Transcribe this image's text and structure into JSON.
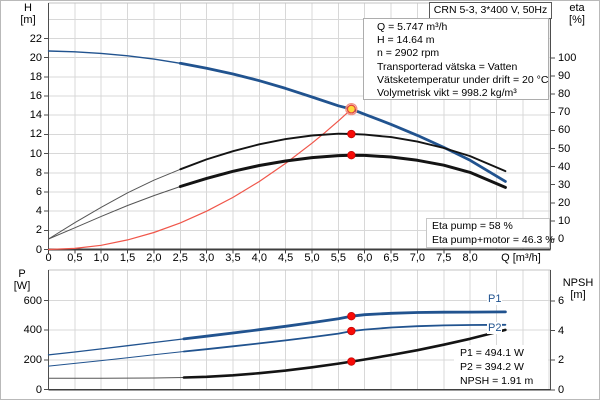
{
  "title_box": "CRN 5-3, 3*400 V, 50Hz",
  "info_lines": [
    "Q = 5.747 m³/h",
    "H = 14.64 m",
    "n = 2902 rpm",
    "Transporterad vätska = Vatten",
    "Vätsketemperatur under drift = 20 °C",
    "Volymetrisk vikt = 998.2 kg/m³"
  ],
  "colors": {
    "curve_blue": "#21538f",
    "curve_red": "#f0564a",
    "curve_black": "#141414",
    "curve_thin_gray": "#555555",
    "marker_red": "#f80b07",
    "marker_yellow": "#ffd93b",
    "marker_ring": "#f29084",
    "grid": "#d8d8d8",
    "frame_light": "#c3c3c3",
    "axis_dark": "#4d4d4d",
    "axis_main": "#3f3f3f"
  },
  "chart_data": [
    {
      "type": "line",
      "name": "qh-eta-chart",
      "title": "CRN 5-3, 3*400 V, 50Hz",
      "x_axis": {
        "label": "Q [m³/h]",
        "min": 0,
        "max": 9.5,
        "grid_step": 0.5,
        "tick_values": [
          0,
          0.5,
          1,
          1.5,
          2,
          2.5,
          3,
          3.5,
          4,
          4.5,
          5,
          5.5,
          6,
          6.5,
          7,
          7.5,
          8
        ],
        "tick_labels": [
          "0",
          "0,5",
          "1,0",
          "1,5",
          "2,0",
          "2,5",
          "3,0",
          "3,5",
          "4,0",
          "4,5",
          "5,0",
          "5,5",
          "6,0",
          "6,5",
          "7,0",
          "7,5",
          "8,0"
        ]
      },
      "y_left_axis": {
        "label": "H",
        "unit": "[m]",
        "min": 0,
        "max": 22,
        "ticks": [
          0,
          2,
          4,
          6,
          8,
          10,
          12,
          14,
          16,
          18,
          20,
          22
        ]
      },
      "y_right_axis": {
        "label": "eta",
        "unit": "[%]",
        "min": 0,
        "max": 100,
        "ticks": [
          0,
          10,
          20,
          30,
          40,
          50,
          60,
          70,
          80,
          90,
          100
        ]
      },
      "series": [
        {
          "name": "pump-curve",
          "color": "#21538f",
          "axis": "left",
          "thin_width": 1.4,
          "thick_width": 2.8,
          "thick_from": 2.5,
          "points": [
            [
              0,
              20.7
            ],
            [
              0.5,
              20.62
            ],
            [
              1,
              20.45
            ],
            [
              1.5,
              20.2
            ],
            [
              2,
              19.85
            ],
            [
              2.5,
              19.42
            ],
            [
              3,
              18.9
            ],
            [
              3.5,
              18.3
            ],
            [
              4,
              17.6
            ],
            [
              4.5,
              16.8
            ],
            [
              5,
              15.9
            ],
            [
              5.5,
              14.98
            ],
            [
              5.747,
              14.64
            ],
            [
              6,
              14.1
            ],
            [
              6.5,
              13.05
            ],
            [
              7,
              11.9
            ],
            [
              7.5,
              10.65
            ],
            [
              8,
              9.3
            ],
            [
              8.67,
              7.1
            ]
          ]
        },
        {
          "name": "system-curve",
          "color": "#f0564a",
          "axis": "left",
          "thin_width": 1.2,
          "points": [
            [
              0,
              0
            ],
            [
              0.5,
              0.11
            ],
            [
              1,
              0.44
            ],
            [
              1.5,
              1.0
            ],
            [
              2,
              1.77
            ],
            [
              2.5,
              2.77
            ],
            [
              3,
              3.99
            ],
            [
              3.5,
              5.43
            ],
            [
              4,
              7.09
            ],
            [
              4.5,
              8.98
            ],
            [
              5,
              11.08
            ],
            [
              5.25,
              12.22
            ],
            [
              5.5,
              13.41
            ],
            [
              5.747,
              14.64
            ]
          ]
        },
        {
          "name": "eta-pump-curve",
          "color": "#141414",
          "thin_color": "#555555",
          "axis": "right",
          "thin_width": 1,
          "thick_width": 1.9,
          "thick_from": 2.5,
          "points": [
            [
              0,
              0
            ],
            [
              0.5,
              9
            ],
            [
              1,
              17.5
            ],
            [
              1.5,
              25.5
            ],
            [
              2,
              32.5
            ],
            [
              2.5,
              38.5
            ],
            [
              3,
              44
            ],
            [
              3.5,
              48.5
            ],
            [
              4,
              52.3
            ],
            [
              4.5,
              55.2
            ],
            [
              5,
              57.2
            ],
            [
              5.5,
              58.2
            ],
            [
              5.747,
              58
            ],
            [
              6,
              57.7
            ],
            [
              6.5,
              56.3
            ],
            [
              7,
              53.8
            ],
            [
              7.5,
              50.3
            ],
            [
              8,
              45.8
            ],
            [
              8.67,
              37.5
            ]
          ]
        },
        {
          "name": "eta-pump-motor-curve",
          "color": "#141414",
          "thin_color": "#555555",
          "axis": "right",
          "thin_width": 1,
          "thick_width": 3,
          "thick_from": 2.5,
          "points": [
            [
              0,
              0
            ],
            [
              0.5,
              6.2
            ],
            [
              1,
              12.5
            ],
            [
              1.5,
              18.5
            ],
            [
              2,
              24
            ],
            [
              2.5,
              29
            ],
            [
              3,
              33.5
            ],
            [
              3.5,
              37.4
            ],
            [
              4,
              40.6
            ],
            [
              4.5,
              43.1
            ],
            [
              5,
              45
            ],
            [
              5.5,
              46.1
            ],
            [
              5.747,
              46.3
            ],
            [
              6,
              46.2
            ],
            [
              6.5,
              45.3
            ],
            [
              7,
              43.5
            ],
            [
              7.5,
              40.8
            ],
            [
              8,
              36.8
            ],
            [
              8.67,
              28.5
            ]
          ]
        }
      ],
      "markers": [
        {
          "style": "duty",
          "x": 5.747,
          "y": 14.64,
          "axis": "left",
          "name": "duty-point-marker"
        },
        {
          "style": "dot",
          "x": 5.747,
          "y": 58,
          "axis": "right",
          "name": "eta-pump-point"
        },
        {
          "style": "dot",
          "x": 5.747,
          "y": 46.3,
          "axis": "right",
          "name": "eta-pump-motor-point"
        }
      ],
      "result_lines": [
        "Eta pump = 58 %",
        "Eta pump+motor = 46.3 %"
      ]
    },
    {
      "type": "line",
      "name": "power-npsh-chart",
      "x_axis": {
        "label": "",
        "min": 0,
        "max": 9.5,
        "grid_step": 0.5
      },
      "y_left_axis": {
        "label": "P",
        "unit": "[W]",
        "min": 0,
        "max": 600,
        "ticks": [
          0,
          200,
          400,
          600
        ]
      },
      "y_right_axis": {
        "label": "NPSH",
        "unit": "[m]",
        "min": 0,
        "max": 6,
        "ticks": [
          0,
          2,
          4,
          6
        ]
      },
      "series": [
        {
          "name": "p1-curve",
          "color": "#21538f",
          "axis": "left",
          "thin_width": 1.3,
          "thick_width": 2.8,
          "thick_from": 2.57,
          "points": [
            [
              0,
              233
            ],
            [
              0.5,
              253
            ],
            [
              1,
              274
            ],
            [
              1.5,
              295
            ],
            [
              2,
              317
            ],
            [
              2.57,
              341
            ],
            [
              3,
              359
            ],
            [
              3.5,
              381
            ],
            [
              4,
              403
            ],
            [
              4.5,
              426
            ],
            [
              5,
              451
            ],
            [
              5.5,
              477
            ],
            [
              5.747,
              494
            ],
            [
              6,
              504
            ],
            [
              6.5,
              514
            ],
            [
              7,
              519
            ],
            [
              7.5,
              521
            ],
            [
              8,
              522
            ],
            [
              8.67,
              523
            ]
          ]
        },
        {
          "name": "p2-curve",
          "color": "#21538f",
          "axis": "left",
          "thin_width": 1,
          "thick_width": 1.8,
          "thick_from": 2.57,
          "points": [
            [
              0,
              158
            ],
            [
              0.5,
              176
            ],
            [
              1,
              195
            ],
            [
              1.5,
              214
            ],
            [
              2,
              234
            ],
            [
              2.57,
              256
            ],
            [
              3,
              272
            ],
            [
              3.5,
              291
            ],
            [
              4,
              311
            ],
            [
              4.5,
              331
            ],
            [
              5,
              353
            ],
            [
              5.5,
              377
            ],
            [
              5.747,
              394
            ],
            [
              6,
              404
            ],
            [
              6.5,
              418
            ],
            [
              7,
              427
            ],
            [
              7.5,
              432
            ],
            [
              8,
              435
            ],
            [
              8.67,
              436
            ]
          ]
        },
        {
          "name": "npsh-curve",
          "color": "#141414",
          "thin_color": "#555555",
          "axis": "right",
          "thin_width": 1,
          "thick_width": 2.6,
          "thick_from": 2.57,
          "points": [
            [
              0,
              0.78
            ],
            [
              1,
              0.78
            ],
            [
              2,
              0.8
            ],
            [
              2.57,
              0.83
            ],
            [
              3,
              0.88
            ],
            [
              3.5,
              0.98
            ],
            [
              4,
              1.12
            ],
            [
              4.5,
              1.3
            ],
            [
              5,
              1.52
            ],
            [
              5.5,
              1.77
            ],
            [
              5.747,
              1.91
            ],
            [
              6,
              2.05
            ],
            [
              6.5,
              2.35
            ],
            [
              7,
              2.68
            ],
            [
              7.5,
              3.05
            ],
            [
              8,
              3.45
            ],
            [
              8.67,
              4.05
            ]
          ]
        }
      ],
      "markers": [
        {
          "style": "dot",
          "x": 5.747,
          "y": 494.1,
          "axis": "left",
          "name": "p1-point"
        },
        {
          "style": "dot",
          "x": 5.747,
          "y": 394.2,
          "axis": "left",
          "name": "p2-point"
        },
        {
          "style": "dot",
          "x": 5.747,
          "y": 1.91,
          "axis": "right",
          "name": "npsh-point"
        }
      ],
      "curve_labels": [
        {
          "text": "P1"
        },
        {
          "text": "P2"
        }
      ],
      "result_lines": [
        "P1 = 494.1 W",
        "P2 = 394.2 W",
        "NPSH = 1.91 m"
      ]
    }
  ]
}
